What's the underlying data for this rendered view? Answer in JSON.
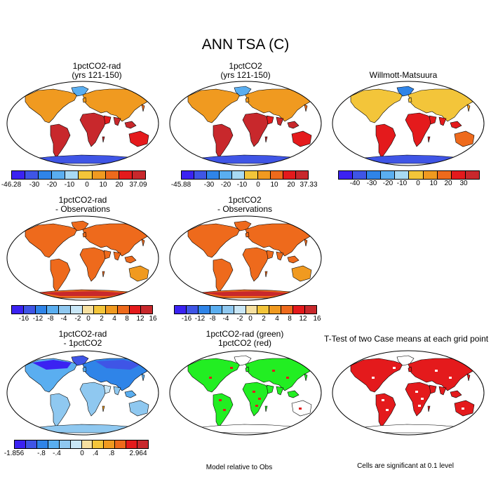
{
  "title": "ANN TSA (C)",
  "panels": [
    {
      "id": "p1",
      "line1": "1pctCO2-rad",
      "line2": "(yrs 121-150)",
      "scheme": "abs_model"
    },
    {
      "id": "p2",
      "line1": "1pctCO2",
      "line2": "(yrs 121-150)",
      "scheme": "abs_model"
    },
    {
      "id": "p3",
      "line1": "Willmott-Matsuura",
      "line2": "",
      "scheme": "abs_obs"
    },
    {
      "id": "p4",
      "line1": "1pctCO2-rad",
      "line2": "- Observations",
      "scheme": "diff_obs"
    },
    {
      "id": "p5",
      "line1": "1pctCO2",
      "line2": "- Observations",
      "scheme": "diff_obs"
    },
    {
      "id": "p6",
      "line1": "1pctCO2-rad",
      "line2": "- 1pctCO2",
      "scheme": "diff_case"
    },
    {
      "id": "p7",
      "line1": "1pctCO2-rad (green)",
      "line2": "1pctCO2 (red)",
      "scheme": "green"
    },
    {
      "id": "p8",
      "line1": "T-Test of two Case means at each grid point",
      "line2": "",
      "scheme": "ttest"
    }
  ],
  "colorbars": {
    "cb1": {
      "labels": [
        "-46.28",
        "-30",
        "-20",
        "-10",
        "0",
        "10",
        "20",
        "37.09"
      ]
    },
    "cb2": {
      "labels": [
        "-45.88",
        "-30",
        "-20",
        "-10",
        "0",
        "10",
        "20",
        "37.33"
      ]
    },
    "cb3": {
      "labels": [
        "-40",
        "-30",
        "-20",
        "-10",
        "0",
        "10",
        "20",
        "30"
      ]
    },
    "cb4": {
      "labels": [
        "-16",
        "-12",
        "-8",
        "-4",
        "-2",
        "0",
        "2",
        "4",
        "8",
        "12",
        "16"
      ]
    },
    "cb5": {
      "labels": [
        "-16",
        "-12",
        "-8",
        "-4",
        "-2",
        "0",
        "2",
        "4",
        "8",
        "12",
        "16"
      ]
    },
    "cb6": {
      "labels": [
        "-1.856",
        "-.8",
        "-.4",
        "0",
        ".4",
        ".8",
        "2.964"
      ]
    }
  },
  "colors": {
    "ramp": [
      "#3b22f2",
      "#3f55e6",
      "#2f84e8",
      "#5aaef0",
      "#a8daf4",
      "#f3c53a",
      "#f09a20",
      "#ee6a1c",
      "#e41a1c",
      "#c8282c"
    ],
    "ramp12": [
      "#3b22f2",
      "#3f55e6",
      "#2f84e8",
      "#5aaef0",
      "#8fc8f0",
      "#c8e6f6",
      "#f6e0a0",
      "#f3c53a",
      "#f09a20",
      "#ee6a1c",
      "#e41a1c",
      "#c8282c"
    ],
    "significant": "#e41a1c",
    "green_case": "#22ee22",
    "ocean": "#ffffff"
  },
  "notes": {
    "model_relative": "Model relative to Obs",
    "cells_significant": "Cells are significant at 0.1 level"
  }
}
